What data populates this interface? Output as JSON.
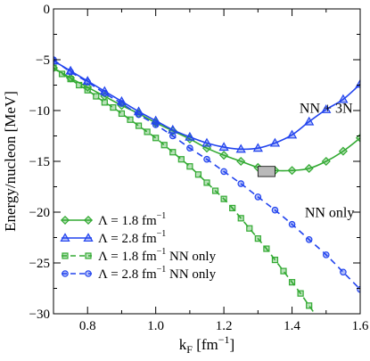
{
  "chart_data": {
    "type": "line",
    "title": "",
    "xlabel": {
      "base": "k",
      "sub": "F",
      "unit_pre": " [fm",
      "unit_sup": "−1",
      "unit_post": "]"
    },
    "ylabel": "Energy/nucleon [MeV]",
    "xlim": [
      0.7,
      1.6
    ],
    "ylim": [
      -30,
      0
    ],
    "xticks": [
      0.8,
      1.0,
      1.2,
      1.4,
      1.6
    ],
    "xtick_labels": [
      "0.8",
      "1.0",
      "1.2",
      "1.4",
      "1.6"
    ],
    "yticks": [
      0,
      -5,
      -10,
      -15,
      -20,
      -25,
      -30
    ],
    "ytick_labels": [
      "0",
      "−5",
      "−10",
      "−15",
      "−20",
      "−25",
      "−30"
    ],
    "grid": false,
    "legend_position": "bottom-left",
    "annotations": [
      {
        "text": "NN + 3N",
        "x": 1.5,
        "y": -10.2
      },
      {
        "text": "NN only",
        "x": 1.51,
        "y": -20.5
      }
    ],
    "empirical_box": {
      "x": [
        1.3,
        1.35
      ],
      "y": [
        -16.5,
        -15.5
      ],
      "color": "#b9b9b9"
    },
    "series": [
      {
        "name": "Λ = 1.8 fm⁻¹",
        "label": {
          "pre": "Λ = 1.8 fm",
          "sup": "−1",
          "post": ""
        },
        "color": "#33aa33",
        "dash": "",
        "marker": "diamond",
        "x": [
          0.7,
          0.75,
          0.8,
          0.85,
          0.9,
          0.95,
          1.0,
          1.05,
          1.1,
          1.15,
          1.2,
          1.25,
          1.3,
          1.35,
          1.4,
          1.45,
          1.5,
          1.55,
          1.6
        ],
        "y": [
          -5.8,
          -6.8,
          -7.7,
          -8.6,
          -9.5,
          -10.3,
          -11.2,
          -12.0,
          -12.8,
          -13.7,
          -14.4,
          -15.0,
          -15.6,
          -15.9,
          -15.9,
          -15.7,
          -15.0,
          -14.0,
          -12.7
        ]
      },
      {
        "name": "Λ = 2.8 fm⁻¹",
        "label": {
          "pre": "Λ = 2.8 fm",
          "sup": "−1",
          "post": ""
        },
        "color": "#2244ee",
        "dash": "",
        "marker": "triangle",
        "x": [
          0.7,
          0.75,
          0.8,
          0.85,
          0.9,
          0.95,
          1.0,
          1.05,
          1.1,
          1.15,
          1.2,
          1.25,
          1.3,
          1.35,
          1.4,
          1.45,
          1.5,
          1.55,
          1.6
        ],
        "y": [
          -5.1,
          -6.1,
          -7.1,
          -8.1,
          -9.1,
          -10.1,
          -11.0,
          -11.9,
          -12.6,
          -13.2,
          -13.6,
          -13.8,
          -13.7,
          -13.2,
          -12.4,
          -11.1,
          -9.9,
          -8.9,
          -7.4
        ]
      },
      {
        "name": "Λ = 1.8 fm⁻¹ NN only",
        "label": {
          "pre": "Λ = 1.8 fm",
          "sup": "−1",
          "post": " NN only"
        },
        "color": "#33aa33",
        "dash": "7,5",
        "marker": "square",
        "x": [
          0.7,
          0.725,
          0.75,
          0.775,
          0.8,
          0.825,
          0.85,
          0.875,
          0.9,
          0.925,
          0.95,
          0.975,
          1.0,
          1.025,
          1.05,
          1.075,
          1.1,
          1.125,
          1.15,
          1.175,
          1.2,
          1.225,
          1.25,
          1.275,
          1.3,
          1.325,
          1.35,
          1.375,
          1.4,
          1.425,
          1.45,
          1.475
        ],
        "y": [
          -5.8,
          -6.4,
          -6.9,
          -7.5,
          -8.0,
          -8.6,
          -9.2,
          -9.7,
          -10.3,
          -10.9,
          -11.5,
          -12.1,
          -12.7,
          -13.4,
          -14.1,
          -14.8,
          -15.5,
          -16.3,
          -17.1,
          -17.9,
          -18.7,
          -19.6,
          -20.6,
          -21.6,
          -22.6,
          -23.6,
          -24.7,
          -25.8,
          -26.9,
          -28.0,
          -29.2,
          -30.4
        ]
      },
      {
        "name": "Λ = 2.8 fm⁻¹ NN only",
        "label": {
          "pre": "Λ = 2.8 fm",
          "sup": "−1",
          "post": " NN only"
        },
        "color": "#2244ee",
        "dash": "7,5",
        "marker": "circle",
        "x": [
          0.7,
          0.75,
          0.8,
          0.85,
          0.9,
          0.95,
          1.0,
          1.05,
          1.1,
          1.15,
          1.2,
          1.25,
          1.3,
          1.35,
          1.4,
          1.45,
          1.5,
          1.55,
          1.6
        ],
        "y": [
          -5.0,
          -6.2,
          -7.2,
          -8.3,
          -9.3,
          -10.4,
          -11.4,
          -12.5,
          -13.7,
          -14.8,
          -16.0,
          -17.2,
          -18.5,
          -19.8,
          -21.2,
          -22.7,
          -24.2,
          -25.9,
          -27.6
        ]
      }
    ]
  }
}
